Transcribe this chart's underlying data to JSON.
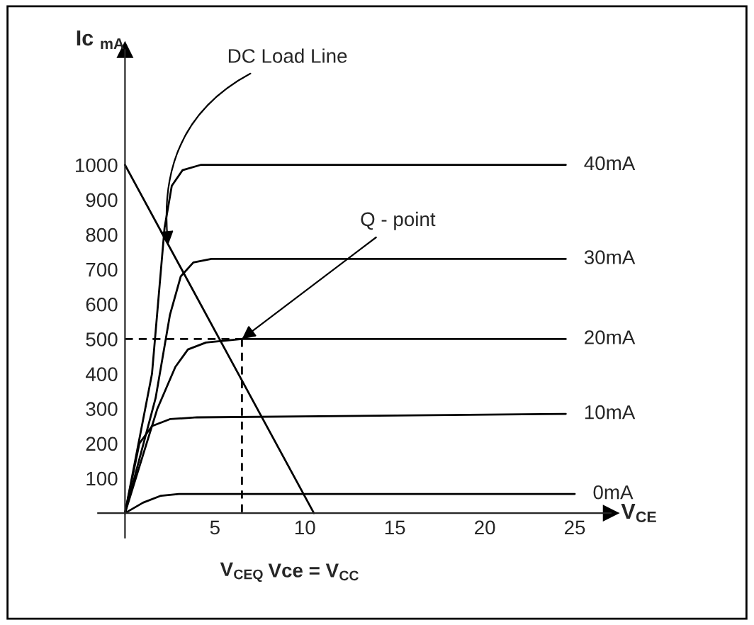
{
  "chart_data": {
    "type": "line",
    "xlabel": "V$_{CE}$",
    "ylabel": "Ic $_{mA}$",
    "xlim": [
      -1.5,
      27
    ],
    "ylim": [
      -70,
      1330
    ],
    "xticks": [
      5,
      10,
      15,
      20,
      25
    ],
    "yticks": [
      100,
      200,
      300,
      400,
      500,
      600,
      700,
      800,
      900,
      1000
    ],
    "grid": false,
    "marker": "none",
    "series": [
      {
        "name": "40mA",
        "color": "#000000",
        "x": [
          0,
          1.5,
          2.2,
          2.6,
          3.2,
          4.2,
          24.5
        ],
        "values": [
          0,
          400,
          820,
          940,
          985,
          1000,
          1000
        ]
      },
      {
        "name": "30mA",
        "color": "#000000",
        "x": [
          0,
          1.7,
          2.5,
          3.1,
          3.8,
          4.8,
          24.5
        ],
        "values": [
          0,
          330,
          570,
          680,
          720,
          730,
          730
        ]
      },
      {
        "name": "20mA",
        "color": "#000000",
        "x": [
          0,
          1.8,
          2.8,
          3.5,
          4.5,
          6.5,
          24.5
        ],
        "values": [
          0,
          300,
          420,
          470,
          490,
          500,
          500
        ]
      },
      {
        "name": "10mA",
        "color": "#000000",
        "x": [
          0,
          0.8,
          1.5,
          2.5,
          4,
          24.5
        ],
        "values": [
          0,
          200,
          250,
          270,
          275,
          285
        ]
      },
      {
        "name": "0mA",
        "color": "#000000",
        "x": [
          0,
          1,
          2,
          3,
          5,
          25
        ],
        "values": [
          0,
          30,
          50,
          55,
          55,
          55
        ]
      },
      {
        "color": "#000000",
        "x": [
          0,
          10.5
        ],
        "values": [
          1000,
          0
        ]
      },
      {
        "color": "#000000",
        "x": [
          0,
          6.5
        ],
        "values": [
          500,
          500
        ],
        "line_style": "dashed"
      },
      {
        "color": "#000000",
        "x": [
          6.5,
          6.5
        ],
        "values": [
          500,
          0
        ],
        "line_style": "dashed"
      }
    ],
    "annotations": [
      {
        "text": "DC Load Line",
        "x": 2.4,
        "y": 771
      },
      {
        "text": "Q - point",
        "x": 6.5,
        "y": 500
      },
      {
        "text": "V$_{CEQ}$",
        "x": 6.5,
        "y": 0
      },
      {
        "text": "Vce = V$_{CC}$",
        "x": 10.5,
        "y": 0
      }
    ]
  }
}
